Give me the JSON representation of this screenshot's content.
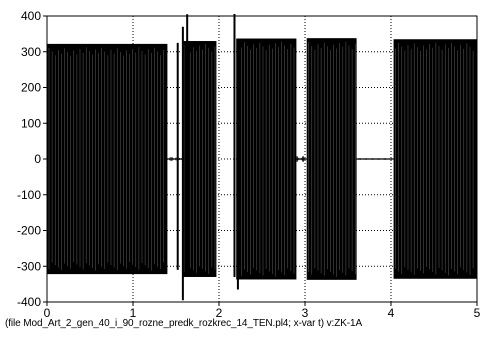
{
  "chart_data": {
    "type": "line",
    "title": "",
    "xlabel": "",
    "ylabel": "",
    "xlim": [
      0,
      5
    ],
    "ylim": [
      -400,
      400
    ],
    "x_ticks": [
      0,
      1,
      2,
      3,
      4,
      5
    ],
    "y_ticks": [
      -400,
      -300,
      -200,
      -100,
      0,
      100,
      200,
      300,
      400
    ],
    "x_tick_labels": [
      "0",
      "1",
      "2",
      "3",
      "4",
      "5"
    ],
    "y_tick_labels": [
      "-400",
      "-300",
      "-200",
      "-100",
      "0",
      "100",
      "200",
      "300",
      "400"
    ],
    "grid": true,
    "grid_style": "dotted",
    "line_color": "#000000",
    "series": [
      {
        "envelope_segments": [
          {
            "t_start": 0.0,
            "t_end": 1.4,
            "upper": 322,
            "lower": -322
          },
          {
            "t_start": 1.57,
            "t_end": 1.97,
            "upper": 330,
            "lower": -330
          },
          {
            "t_start": 2.2,
            "t_end": 2.9,
            "upper": 337,
            "lower": -337
          },
          {
            "t_start": 3.02,
            "t_end": 3.6,
            "upper": 338,
            "lower": -338
          },
          {
            "t_start": 4.03,
            "t_end": 5.0,
            "upper": 335,
            "lower": -335
          }
        ],
        "transitions": [
          {
            "t_start": 1.4,
            "t_end": 1.57,
            "residual": 6
          },
          {
            "t_start": 2.9,
            "t_end": 3.02,
            "residual": 8
          },
          {
            "t_start": 3.6,
            "t_end": 4.03,
            "residual": 2
          }
        ],
        "spikes": [
          {
            "t": 1.52,
            "y_max": 325,
            "y_min": -310
          },
          {
            "t": 1.58,
            "y_max": 370,
            "y_min": -395
          },
          {
            "t": 1.63,
            "y_max": 405,
            "y_min": -330
          },
          {
            "t": 2.18,
            "y_max": 410,
            "y_min": -330
          },
          {
            "t": 2.22,
            "y_max": 330,
            "y_min": -365
          }
        ]
      }
    ]
  },
  "caption": "(file Mod_Art_2_gen_40_i_90_rozne_predk_rozkrec_14_TEN.pl4; x-var t)  v:ZK-1A"
}
